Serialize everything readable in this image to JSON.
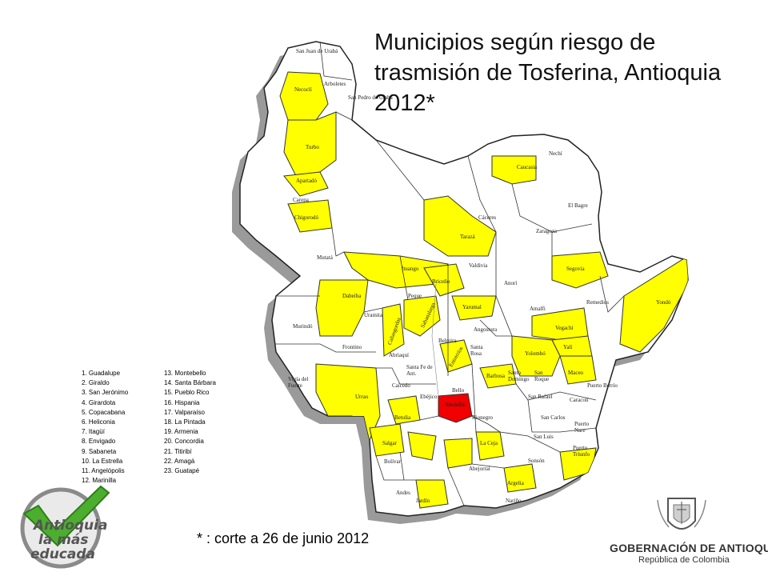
{
  "title": "Municipios según riesgo de trasmisión de Tosferina, Antioquia 2012*",
  "footnote": "* : corte a 26 de junio 2012",
  "colors": {
    "high_risk": "#f00000",
    "medium_risk": "#ffff00",
    "low_risk": "#ffffff",
    "border": "#333333",
    "shadow": "#9a9a9a"
  },
  "legend_col1": [
    "1. Guadalupe",
    "2. Giraldo",
    "3. San Jerónimo",
    "4. Girardota",
    "5. Copacabana",
    "6. Heliconia",
    "7. Itagüí",
    "8. Envigado",
    "9. Sabaneta",
    "10. La Estrella",
    "11. Angelópolis",
    "12. Marinilla"
  ],
  "legend_col2": [
    "13. Montebello",
    "14. Santa Bárbara",
    "15. Pueblo Rico",
    "16. Hispania",
    "17. Valparaíso",
    "18. La Pintada",
    "19. Armenia",
    "20. Concordia",
    "21. Titiribí",
    "22. Amagá",
    "23. Guatapé"
  ],
  "municipalities": [
    {
      "label": "San Juan de Urabá",
      "risk": "low"
    },
    {
      "label": "Arboletes",
      "risk": "low"
    },
    {
      "label": "San Pedro de Urabá",
      "risk": "low"
    },
    {
      "label": "Necoclí",
      "risk": "medium"
    },
    {
      "label": "Turbo",
      "risk": "medium"
    },
    {
      "label": "Apartadó",
      "risk": "medium"
    },
    {
      "label": "Carepa",
      "risk": "low"
    },
    {
      "label": "Chigorodó",
      "risk": "medium"
    },
    {
      "label": "Mutatá",
      "risk": "low"
    },
    {
      "label": "Murindó",
      "risk": "low"
    },
    {
      "label": "Vigía del Fuerte",
      "risk": "low"
    },
    {
      "label": "Dabeiba",
      "risk": "medium"
    },
    {
      "label": "Uramita",
      "risk": "low"
    },
    {
      "label": "Frontino",
      "risk": "low"
    },
    {
      "label": "Urrao",
      "risk": "medium"
    },
    {
      "label": "Caicedo",
      "risk": "low"
    },
    {
      "label": "Salgar",
      "risk": "medium"
    },
    {
      "label": "Betulia",
      "risk": "medium"
    },
    {
      "label": "Bolívar",
      "risk": "low"
    },
    {
      "label": "Andes",
      "risk": "low"
    },
    {
      "label": "Jardín",
      "risk": "low"
    },
    {
      "label": "Ituango",
      "risk": "medium"
    },
    {
      "label": "Peque",
      "risk": "low"
    },
    {
      "label": "Cañasgordas",
      "risk": "medium"
    },
    {
      "label": "Abriaquí",
      "risk": "low"
    },
    {
      "label": "Santa Fe de Ant.",
      "risk": "low"
    },
    {
      "label": "Ebéjico",
      "risk": "low"
    },
    {
      "label": "Tarazá",
      "risk": "medium"
    },
    {
      "label": "Cáceres",
      "risk": "low"
    },
    {
      "label": "Caucasia",
      "risk": "medium"
    },
    {
      "label": "Nechí",
      "risk": "low"
    },
    {
      "label": "El Bagre",
      "risk": "low"
    },
    {
      "label": "Zaragoza",
      "risk": "low"
    },
    {
      "label": "Valdivia",
      "risk": "low"
    },
    {
      "label": "Briceño",
      "risk": "medium"
    },
    {
      "label": "Yarumal",
      "risk": "medium"
    },
    {
      "label": "Anorí",
      "risk": "low"
    },
    {
      "label": "Amalfi",
      "risk": "low"
    },
    {
      "label": "Segovia",
      "risk": "medium"
    },
    {
      "label": "Remedios",
      "risk": "low"
    },
    {
      "label": "Vegachí",
      "risk": "medium"
    },
    {
      "label": "Yalí",
      "risk": "medium"
    },
    {
      "label": "Yondó",
      "risk": "medium"
    },
    {
      "label": "Angostura",
      "risk": "low"
    },
    {
      "label": "Santa Rosa",
      "risk": "low"
    },
    {
      "label": "Yolombó",
      "risk": "medium"
    },
    {
      "label": "Maceo",
      "risk": "medium"
    },
    {
      "label": "Puerto Berrío",
      "risk": "low"
    },
    {
      "label": "Caracolí",
      "risk": "low"
    },
    {
      "label": "Puerto Nare",
      "risk": "low"
    },
    {
      "label": "Puerto Triunfo",
      "risk": "medium"
    },
    {
      "label": "San Roque",
      "risk": "low"
    },
    {
      "label": "Santo Domingo",
      "risk": "low"
    },
    {
      "label": "San Carlos",
      "risk": "low"
    },
    {
      "label": "San Luis",
      "risk": "low"
    },
    {
      "label": "Sonsón",
      "risk": "low"
    },
    {
      "label": "Argelia",
      "risk": "low"
    },
    {
      "label": "Nariño",
      "risk": "low"
    },
    {
      "label": "Abejorral",
      "risk": "low"
    },
    {
      "label": "Medellín",
      "risk": "high"
    },
    {
      "label": "Bello",
      "risk": "low"
    },
    {
      "label": "Barbosa",
      "risk": "medium"
    },
    {
      "label": "Rionegro",
      "risk": "low"
    },
    {
      "label": "La Ceja",
      "risk": "medium"
    },
    {
      "label": "San Rafael",
      "risk": "low"
    },
    {
      "label": "Belmira",
      "risk": "low"
    },
    {
      "label": "Entrerríos",
      "risk": "medium"
    },
    {
      "label": "Sabanalarga",
      "risk": "medium"
    }
  ]
}
